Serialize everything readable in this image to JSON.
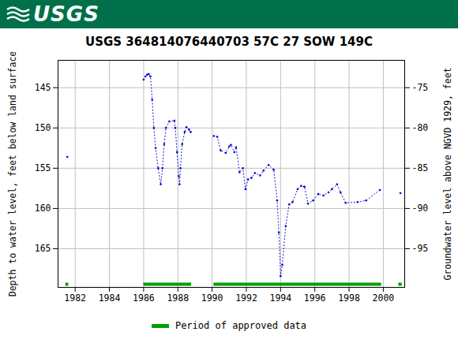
{
  "header": {
    "logo": "USGS"
  },
  "chart_data": {
    "type": "line",
    "title": "USGS 364814076440703 57C 27 SOW 149C",
    "ylabel": "Depth to water level, feet below land surface",
    "y2label": "Groundwater level above NGVD 1929, feet",
    "xlim": [
      1981.0,
      2001.25
    ],
    "xticks": [
      1982,
      1984,
      1986,
      1988,
      1990,
      1992,
      1994,
      1996,
      1998,
      2000
    ],
    "ylim": [
      141.6,
      169.8
    ],
    "yticks": [
      145,
      150,
      155,
      160,
      165
    ],
    "y2lim": [
      -71.6,
      -99.8
    ],
    "y2ticks": [
      -75,
      -80,
      -85,
      -90,
      -95
    ],
    "grid": true,
    "color": "#0000cc",
    "marker": "dot",
    "line_style": "dotted",
    "x": [
      1981.54,
      1983.8,
      1986.0,
      1986.1,
      1986.2,
      1986.3,
      1986.4,
      1986.5,
      1986.6,
      1986.7,
      1986.85,
      1987.0,
      1987.1,
      1987.2,
      1987.3,
      1987.5,
      1987.8,
      1987.85,
      1987.95,
      1988.05,
      1988.1,
      1988.15,
      1988.25,
      1988.4,
      1988.5,
      1988.65,
      1988.75,
      1989.4,
      1990.1,
      1990.3,
      1990.5,
      1990.8,
      1991.0,
      1991.1,
      1991.3,
      1991.4,
      1991.6,
      1991.8,
      1991.95,
      1992.1,
      1992.3,
      1992.5,
      1992.8,
      1993.0,
      1993.3,
      1993.6,
      1993.8,
      1993.9,
      1994.0,
      1994.1,
      1994.3,
      1994.5,
      1994.7,
      1995.0,
      1995.2,
      1995.4,
      1995.6,
      1995.9,
      1996.2,
      1996.5,
      1996.8,
      1997.0,
      1997.3,
      1997.5,
      1997.8,
      1998.5,
      1999.0,
      1999.8,
      2000.4,
      2001.0
    ],
    "values": [
      153.6,
      null,
      144.0,
      143.6,
      143.4,
      143.3,
      143.6,
      146.5,
      150.0,
      152.5,
      155.0,
      157.0,
      155.0,
      152.0,
      150.0,
      149.2,
      149.1,
      150.0,
      153.0,
      156.0,
      157.0,
      155.0,
      152.0,
      150.5,
      149.9,
      150.2,
      150.5,
      null,
      151.0,
      151.1,
      152.8,
      153.1,
      152.3,
      152.1,
      153.0,
      152.4,
      155.5,
      155.0,
      157.6,
      156.4,
      156.2,
      155.6,
      155.9,
      155.3,
      154.6,
      155.2,
      159.0,
      163.0,
      168.4,
      167.0,
      162.2,
      159.5,
      159.2,
      157.6,
      157.2,
      157.3,
      159.4,
      159.0,
      158.2,
      158.4,
      158.0,
      157.6,
      157.0,
      158.0,
      159.3,
      159.2,
      159.0,
      157.7,
      null,
      158.1
    ],
    "periods": {
      "name": "Period of approved data",
      "color": "#00a000",
      "ranges": [
        [
          1981.45,
          1981.62
        ],
        [
          1986.0,
          1988.8
        ],
        [
          1990.1,
          1999.9
        ],
        [
          2000.9,
          2001.1
        ]
      ]
    }
  }
}
